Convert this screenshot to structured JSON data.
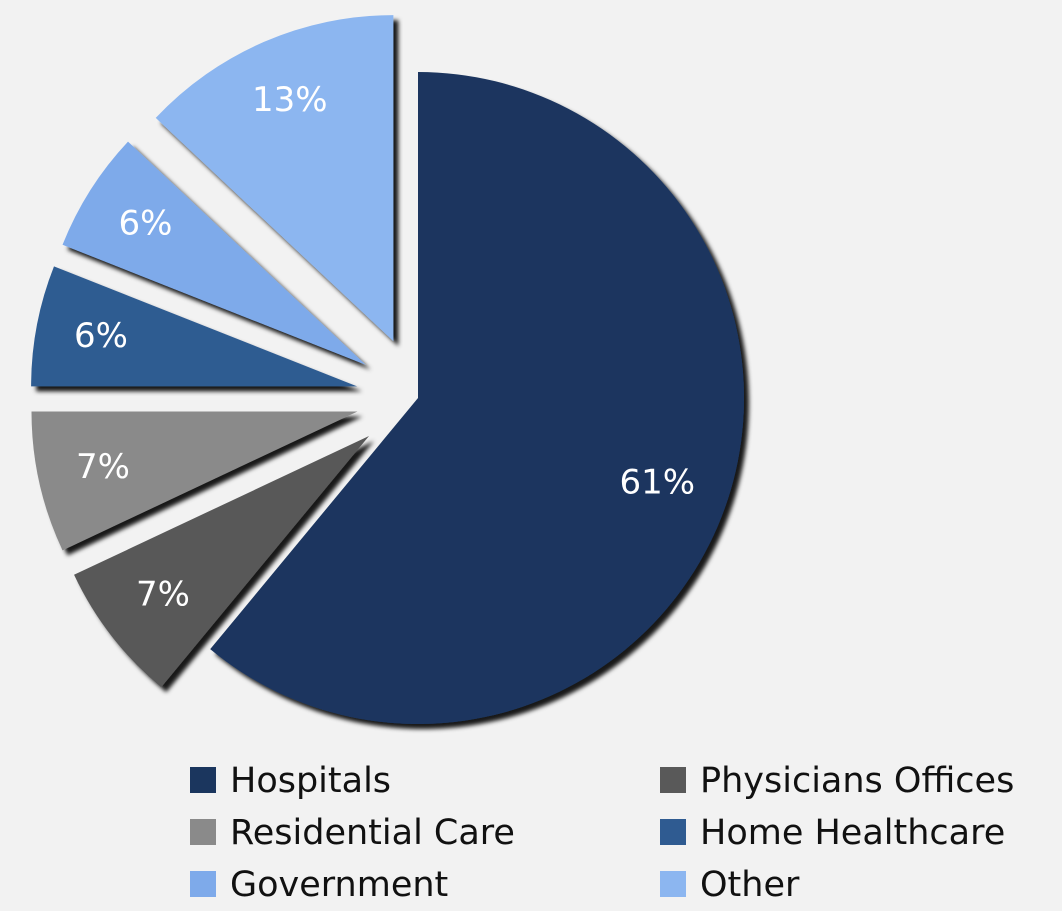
{
  "chart_data": {
    "type": "pie",
    "categories": [
      "Hospitals",
      "Physicians Offices",
      "Residential Care",
      "Home Healthcare",
      "Government",
      "Other"
    ],
    "values": [
      61,
      7,
      7,
      6,
      6,
      13
    ],
    "value_labels": [
      "61%",
      "7%",
      "7%",
      "6%",
      "6%",
      "13%"
    ],
    "colors": [
      "#1b365e",
      "#595959",
      "#8a8a8a",
      "#2f5b91",
      "#7eaaea",
      "#8cb6f0"
    ],
    "legend": "bottom"
  }
}
